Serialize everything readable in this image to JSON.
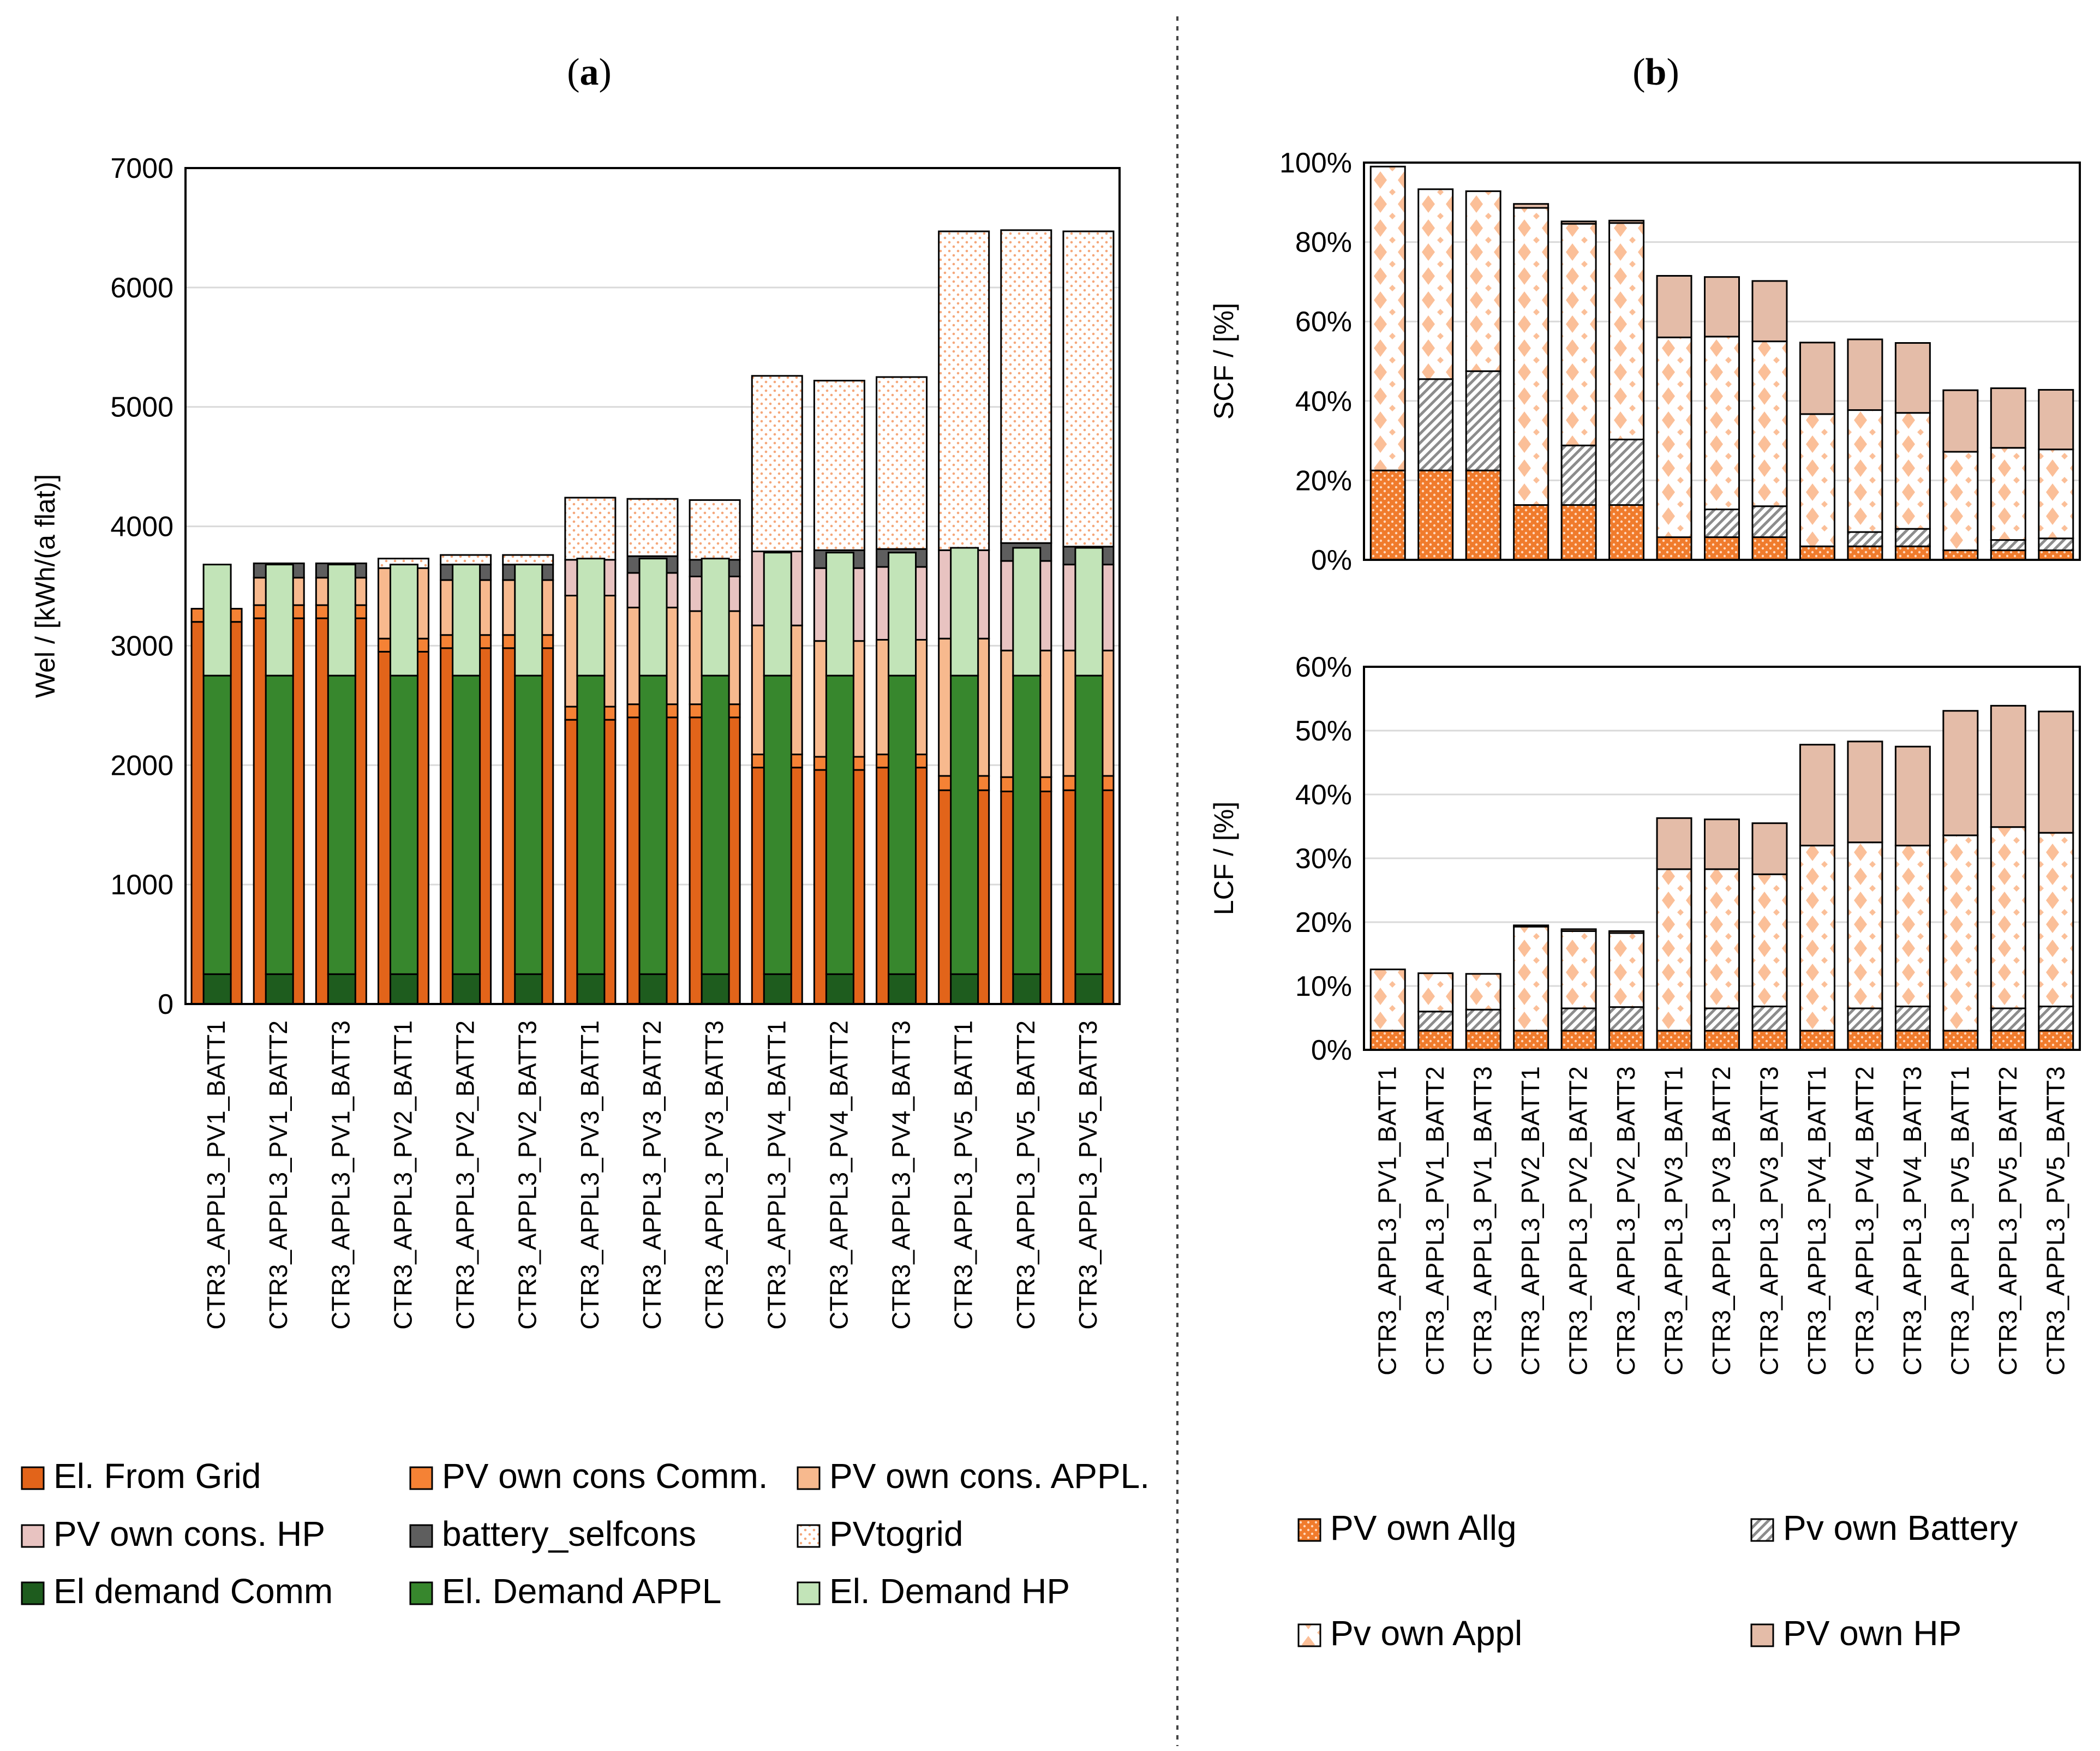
{
  "figure": {
    "panel_a_label": "a",
    "panel_b_label": "b",
    "legend_a": [
      {
        "label": "El. From Grid",
        "color": "#e2641a",
        "pattern": "solid"
      },
      {
        "label": "PV own cons Comm.",
        "color": "#f58235",
        "pattern": "solid"
      },
      {
        "label": "PV own cons. APPL.",
        "color": "#f7b98e",
        "pattern": "solid"
      },
      {
        "label": "PV own cons. HP",
        "color": "#e8c3c1",
        "pattern": "solid"
      },
      {
        "label": "battery_selfcons",
        "color": "#5e5e5e",
        "pattern": "solid"
      },
      {
        "label": "PVtogrid",
        "color": "#ffffff",
        "pattern": "dots"
      },
      {
        "label": "El demand Comm",
        "color": "#1e5c1e",
        "pattern": "solid"
      },
      {
        "label": "El. Demand APPL",
        "color": "#37872d",
        "pattern": "solid"
      },
      {
        "label": "El. Demand HP",
        "color": "#c2e4b8",
        "pattern": "solid"
      }
    ],
    "legend_b": [
      {
        "label": "PV own Allg",
        "color": "#f58235",
        "pattern": "dots"
      },
      {
        "label": "Pv own Battery",
        "color": "#d9d9d9",
        "pattern": "hatch"
      },
      {
        "label": "Pv own Appl",
        "color": "#fbd3b8",
        "pattern": "diamond"
      },
      {
        "label": "PV own HP",
        "color": "#e4bca8",
        "pattern": "solid"
      }
    ]
  },
  "chart_data": [
    {
      "id": "a",
      "type": "bar",
      "stacking": "stacked, paired sub-bars per scenario",
      "title": "(a)",
      "ylabel": "Wel / [kWh/(a flat)]",
      "xlabel": "",
      "ylim": [
        0,
        7000
      ],
      "yticks": [
        0,
        1000,
        2000,
        3000,
        4000,
        5000,
        6000,
        7000
      ],
      "grid": true,
      "categories": [
        "CTR3_APPL3_PV1_BATT1",
        "CTR3_APPL3_PV1_BATT2",
        "CTR3_APPL3_PV1_BATT3",
        "CTR3_APPL3_PV2_BATT1",
        "CTR3_APPL3_PV2_BATT2",
        "CTR3_APPL3_PV2_BATT3",
        "CTR3_APPL3_PV3_BATT1",
        "CTR3_APPL3_PV3_BATT2",
        "CTR3_APPL3_PV3_BATT3",
        "CTR3_APPL3_PV4_BATT1",
        "CTR3_APPL3_PV4_BATT2",
        "CTR3_APPL3_PV4_BATT3",
        "CTR3_APPL3_PV5_BATT1",
        "CTR3_APPL3_PV5_BATT2",
        "CTR3_APPL3_PV5_BATT3"
      ],
      "supply_series": [
        {
          "name": "El. From Grid",
          "values": [
            3200,
            3230,
            3230,
            2950,
            2980,
            2980,
            2380,
            2400,
            2400,
            1980,
            1960,
            1980,
            1790,
            1780,
            1790
          ]
        },
        {
          "name": "PV own cons Comm.",
          "values": [
            110,
            110,
            110,
            110,
            110,
            110,
            110,
            110,
            110,
            110,
            110,
            110,
            120,
            120,
            120
          ]
        },
        {
          "name": "PV own cons. APPL.",
          "values": [
            0,
            230,
            230,
            590,
            460,
            460,
            930,
            810,
            780,
            1080,
            970,
            960,
            1150,
            1060,
            1050
          ]
        },
        {
          "name": "PV own cons. HP",
          "values": [
            0,
            0,
            0,
            0,
            0,
            0,
            300,
            290,
            290,
            620,
            610,
            610,
            740,
            750,
            720
          ]
        },
        {
          "name": "battery_selfcons",
          "values": [
            0,
            120,
            120,
            0,
            130,
            130,
            0,
            140,
            140,
            0,
            150,
            150,
            0,
            150,
            150
          ]
        },
        {
          "name": "PVtogrid",
          "values": [
            0,
            0,
            0,
            80,
            80,
            80,
            520,
            480,
            500,
            1470,
            1420,
            1440,
            2670,
            2620,
            2640
          ]
        }
      ],
      "demand_series": [
        {
          "name": "El demand Comm",
          "values": [
            250,
            250,
            250,
            250,
            250,
            250,
            250,
            250,
            250,
            250,
            250,
            250,
            250,
            250,
            250
          ]
        },
        {
          "name": "El. Demand APPL",
          "values": [
            2500,
            2500,
            2500,
            2500,
            2500,
            2500,
            2500,
            2500,
            2500,
            2500,
            2500,
            2500,
            2500,
            2500,
            2500
          ]
        },
        {
          "name": "El. Demand HP",
          "values": [
            930,
            930,
            930,
            930,
            930,
            930,
            980,
            980,
            980,
            1030,
            1030,
            1030,
            1070,
            1070,
            1070
          ]
        }
      ]
    },
    {
      "id": "b-scf",
      "type": "bar",
      "stacking": "stacked",
      "title": "(b)",
      "ylabel": "SCF / [%]",
      "xlabel": "",
      "ylim": [
        0,
        100
      ],
      "yticks": [
        0,
        20,
        40,
        60,
        80,
        100
      ],
      "grid": true,
      "categories": [
        "CTR3_APPL3_PV1_BATT1",
        "CTR3_APPL3_PV1_BATT2",
        "CTR3_APPL3_PV1_BATT3",
        "CTR3_APPL3_PV2_BATT1",
        "CTR3_APPL3_PV2_BATT2",
        "CTR3_APPL3_PV2_BATT3",
        "CTR3_APPL3_PV3_BATT1",
        "CTR3_APPL3_PV3_BATT2",
        "CTR3_APPL3_PV3_BATT3",
        "CTR3_APPL3_PV4_BATT1",
        "CTR3_APPL3_PV4_BATT2",
        "CTR3_APPL3_PV4_BATT3",
        "CTR3_APPL3_PV5_BATT1",
        "CTR3_APPL3_PV5_BATT2",
        "CTR3_APPL3_PV5_BATT3"
      ],
      "series": [
        {
          "name": "PV own Allg",
          "values": [
            22.5,
            22.5,
            22.5,
            13.8,
            13.8,
            13.8,
            5.7,
            5.7,
            5.7,
            3.4,
            3.4,
            3.4,
            2.4,
            2.4,
            2.4
          ]
        },
        {
          "name": "Pv own Battery",
          "values": [
            0,
            23,
            25,
            0,
            15,
            16.5,
            0,
            7,
            7.8,
            0,
            3.6,
            4.4,
            0,
            2.6,
            3
          ]
        },
        {
          "name": "Pv own Appl",
          "values": [
            76.5,
            47.8,
            45.3,
            74.8,
            55.8,
            54.5,
            50.3,
            43.5,
            41.5,
            33.3,
            30.7,
            29.2,
            24.8,
            23.2,
            22.4
          ]
        },
        {
          "name": "PV own HP",
          "values": [
            0,
            0,
            0,
            1,
            0.6,
            0.6,
            15.5,
            15,
            15.2,
            18,
            17.8,
            17.6,
            15.5,
            15,
            15
          ]
        }
      ]
    },
    {
      "id": "b-lcf",
      "type": "bar",
      "stacking": "stacked",
      "title": "",
      "ylabel": "LCF / [%]",
      "xlabel": "",
      "ylim": [
        0,
        60
      ],
      "yticks": [
        0,
        10,
        20,
        30,
        40,
        50,
        60
      ],
      "grid": true,
      "categories": [
        "CTR3_APPL3_PV1_BATT1",
        "CTR3_APPL3_PV1_BATT2",
        "CTR3_APPL3_PV1_BATT3",
        "CTR3_APPL3_PV2_BATT1",
        "CTR3_APPL3_PV2_BATT2",
        "CTR3_APPL3_PV2_BATT3",
        "CTR3_APPL3_PV3_BATT1",
        "CTR3_APPL3_PV3_BATT2",
        "CTR3_APPL3_PV3_BATT3",
        "CTR3_APPL3_PV4_BATT1",
        "CTR3_APPL3_PV4_BATT2",
        "CTR3_APPL3_PV4_BATT3",
        "CTR3_APPL3_PV5_BATT1",
        "CTR3_APPL3_PV5_BATT2",
        "CTR3_APPL3_PV5_BATT3"
      ],
      "series": [
        {
          "name": "PV own Allg",
          "values": [
            3,
            3,
            3,
            3,
            3,
            3,
            3,
            3,
            3,
            3,
            3,
            3,
            3,
            3,
            3
          ]
        },
        {
          "name": "Pv own Battery",
          "values": [
            0,
            3,
            3.3,
            0,
            3.5,
            3.7,
            0,
            3.5,
            3.8,
            0,
            3.5,
            3.8,
            0,
            3.5,
            3.8
          ]
        },
        {
          "name": "Pv own Appl",
          "values": [
            9.6,
            6,
            5.6,
            16.3,
            12.1,
            11.6,
            25.3,
            21.8,
            20.7,
            29,
            26,
            25.2,
            30.6,
            28.4,
            27.2
          ]
        },
        {
          "name": "PV own HP",
          "values": [
            0,
            0,
            0,
            0.2,
            0.3,
            0.3,
            8,
            7.8,
            8,
            15.8,
            15.8,
            15.5,
            19.5,
            19,
            19
          ]
        }
      ]
    }
  ]
}
